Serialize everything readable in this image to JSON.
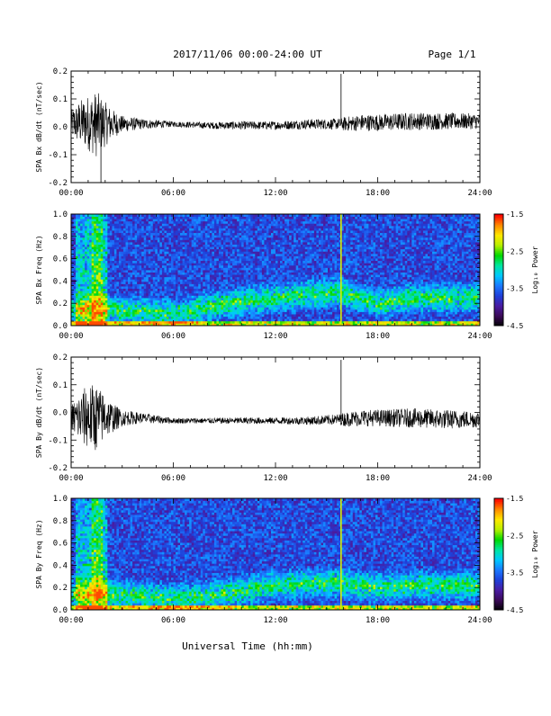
{
  "header": {
    "title": "2017/11/06  00:00-24:00 UT",
    "page": "Page 1/1"
  },
  "xaxis": {
    "label": "Universal Time (hh:mm)",
    "ticks": [
      "00:00",
      "06:00",
      "12:00",
      "18:00",
      "24:00"
    ],
    "range_hours": [
      0,
      24
    ]
  },
  "colors": {
    "trace": "#000000",
    "colormap": [
      "#000000",
      "#3a0a56",
      "#4a1ba0",
      "#1f3fd8",
      "#1b78ff",
      "#00c8ff",
      "#00e6a0",
      "#00d800",
      "#b8f000",
      "#ffe800",
      "#ff8800",
      "#ff0000"
    ]
  },
  "colorbar": {
    "label": "Log₁₀ Power",
    "ticks": [
      "-1.5",
      "-2.5",
      "-3.5",
      "-4.5"
    ],
    "range": [
      -4.5,
      -1.5
    ]
  },
  "chart_data": [
    {
      "type": "line",
      "name": "bx-waveform",
      "ylabel": "SPA Bx dB/dt (nT/sec)",
      "yticks": [
        "0.2",
        "0.1",
        "0.0",
        "-0.1",
        "-0.2"
      ],
      "ylim": [
        -0.2,
        0.2
      ],
      "xlim": [
        0,
        24
      ],
      "description_points": {
        "x_hours": [
          0,
          0.5,
          1.0,
          1.5,
          2.0,
          2.5,
          3.0,
          4.0,
          5.0,
          6.0,
          8.0,
          10.0,
          12.0,
          14.0,
          15.8,
          16.0,
          17.0,
          18.0,
          20.0,
          22.0,
          24.0
        ],
        "amplitude": [
          0.05,
          0.08,
          0.1,
          0.12,
          0.08,
          0.05,
          0.03,
          0.02,
          0.015,
          0.01,
          0.012,
          0.015,
          0.015,
          0.018,
          0.02,
          0.025,
          0.03,
          0.03,
          0.032,
          0.03,
          0.028
        ],
        "baseline": [
          0.01,
          0.015,
          0.015,
          0.01,
          0.01,
          0.01,
          0.01,
          0.01,
          0.01,
          0.01,
          0.005,
          0.005,
          0.005,
          0.01,
          0.01,
          0.01,
          0.015,
          0.015,
          0.02,
          0.02,
          0.02
        ]
      },
      "spikes": [
        {
          "x": 15.85,
          "y": 0.19
        },
        {
          "x": 1.75,
          "y": -0.2
        }
      ]
    },
    {
      "type": "heatmap",
      "name": "bx-spectrogram",
      "ylabel": "SPA Bx Freq (Hz)",
      "yticks": [
        "1.0",
        "0.8",
        "0.6",
        "0.4",
        "0.2",
        "0.0"
      ],
      "ylim": [
        0,
        1.0
      ],
      "xlim": [
        0,
        24
      ],
      "band_center_hz": {
        "x_hours": [
          0,
          2,
          6,
          9,
          12,
          15.8,
          18,
          20,
          24
        ],
        "freq": [
          0.15,
          0.15,
          0.1,
          0.2,
          0.25,
          0.3,
          0.2,
          0.25,
          0.25
        ]
      },
      "vertical_line_hour": 15.85
    },
    {
      "type": "line",
      "name": "by-waveform",
      "ylabel": "SPA By dB/dt (nT/sec)",
      "yticks": [
        "0.2",
        "0.1",
        "0.0",
        "-0.1",
        "-0.2"
      ],
      "ylim": [
        -0.2,
        0.2
      ],
      "xlim": [
        0,
        24
      ],
      "description_points": {
        "x_hours": [
          0,
          0.5,
          1.0,
          1.5,
          2.0,
          2.5,
          3.0,
          4.0,
          5.0,
          6.0,
          8.0,
          10.0,
          12.0,
          14.0,
          15.8,
          16.0,
          17.0,
          18.0,
          20.0,
          22.0,
          24.0
        ],
        "amplitude": [
          0.05,
          0.09,
          0.12,
          0.12,
          0.08,
          0.05,
          0.03,
          0.02,
          0.015,
          0.01,
          0.01,
          0.012,
          0.012,
          0.015,
          0.02,
          0.025,
          0.03,
          0.03,
          0.035,
          0.035,
          0.03
        ],
        "baseline": [
          -0.02,
          -0.02,
          -0.015,
          -0.02,
          -0.015,
          -0.02,
          -0.02,
          -0.02,
          -0.025,
          -0.03,
          -0.03,
          -0.03,
          -0.03,
          -0.03,
          -0.025,
          -0.025,
          -0.02,
          -0.02,
          -0.02,
          -0.025,
          -0.025
        ]
      },
      "spikes": [
        {
          "x": 15.85,
          "y": 0.19
        }
      ]
    },
    {
      "type": "heatmap",
      "name": "by-spectrogram",
      "ylabel": "SPA By Freq (Hz)",
      "yticks": [
        "1.0",
        "0.8",
        "0.6",
        "0.4",
        "0.2",
        "0.0"
      ],
      "ylim": [
        0,
        1.0
      ],
      "xlim": [
        0,
        24
      ],
      "band_center_hz": {
        "x_hours": [
          0,
          2,
          6,
          9,
          12,
          15.8,
          18,
          20,
          24
        ],
        "freq": [
          0.15,
          0.15,
          0.1,
          0.15,
          0.22,
          0.25,
          0.2,
          0.22,
          0.22
        ]
      },
      "vertical_line_hour": 15.85
    }
  ]
}
